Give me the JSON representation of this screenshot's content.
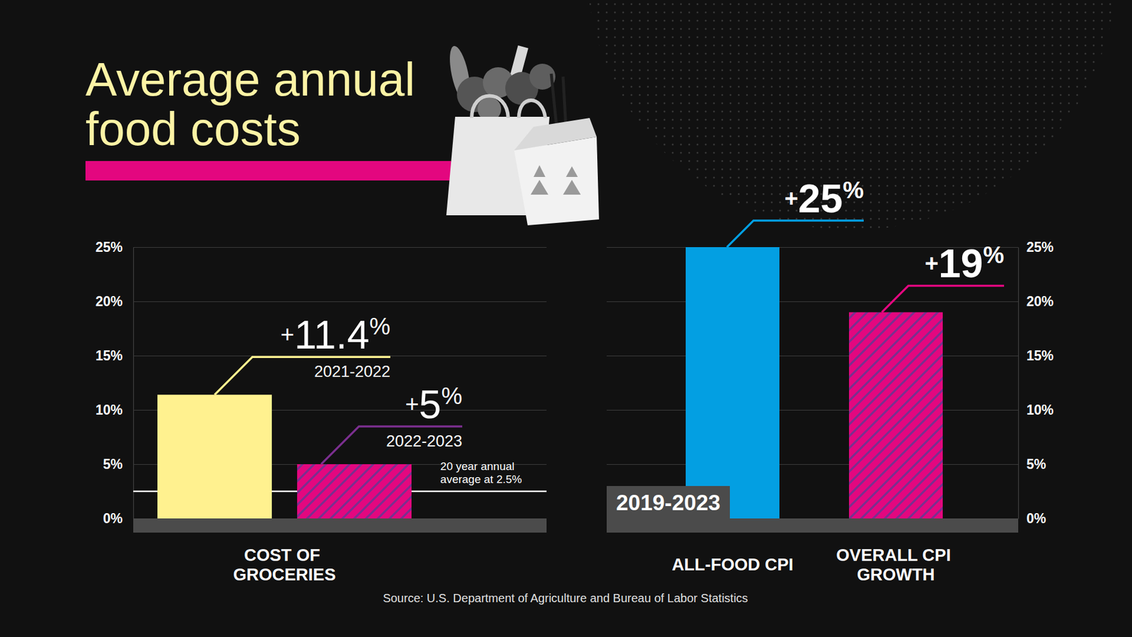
{
  "title": "Average annual food costs",
  "source": "Source: U.S. Department of Agriculture and Bureau of Labor Statistics",
  "chart_data": [
    {
      "type": "bar",
      "categories": [
        "COST OF GROCERIES"
      ],
      "series": [
        {
          "name": "2021-2022",
          "color": "#fff18f",
          "values": [
            11.4
          ],
          "value_labels": [
            "+11.4%"
          ]
        },
        {
          "name": "2022-2023",
          "color": "#e3077f",
          "values": [
            5
          ],
          "value_labels": [
            "+5%"
          ]
        }
      ],
      "ylim": [
        0,
        25
      ],
      "yticks": [
        {
          "value": 0,
          "label": "0%"
        },
        {
          "value": 5,
          "label": "5%"
        },
        {
          "value": 10,
          "label": "10%"
        },
        {
          "value": 15,
          "label": "15%"
        },
        {
          "value": 20,
          "label": "20%"
        },
        {
          "value": 25,
          "label": "25%"
        }
      ],
      "grid": true,
      "data_labels": true,
      "annotations": [
        {
          "text": "20 year annual average at 2.5%",
          "y": 2.5
        }
      ]
    },
    {
      "type": "bar",
      "subtitle": "2019-2023",
      "categories": [
        "ALL-FOOD CPI",
        "OVERALL CPI GROWTH"
      ],
      "values": [
        25,
        19
      ],
      "value_labels": [
        "+25%",
        "+19%"
      ],
      "colors": [
        "#039fe2",
        "#e3077f"
      ],
      "ylim": [
        0,
        25
      ],
      "yticks": [
        {
          "value": 0,
          "label": "0%"
        },
        {
          "value": 5,
          "label": "5%"
        },
        {
          "value": 10,
          "label": "10%"
        },
        {
          "value": 15,
          "label": "15%"
        },
        {
          "value": 20,
          "label": "20%"
        },
        {
          "value": 25,
          "label": "25%"
        }
      ],
      "grid": true,
      "data_labels": true
    }
  ]
}
